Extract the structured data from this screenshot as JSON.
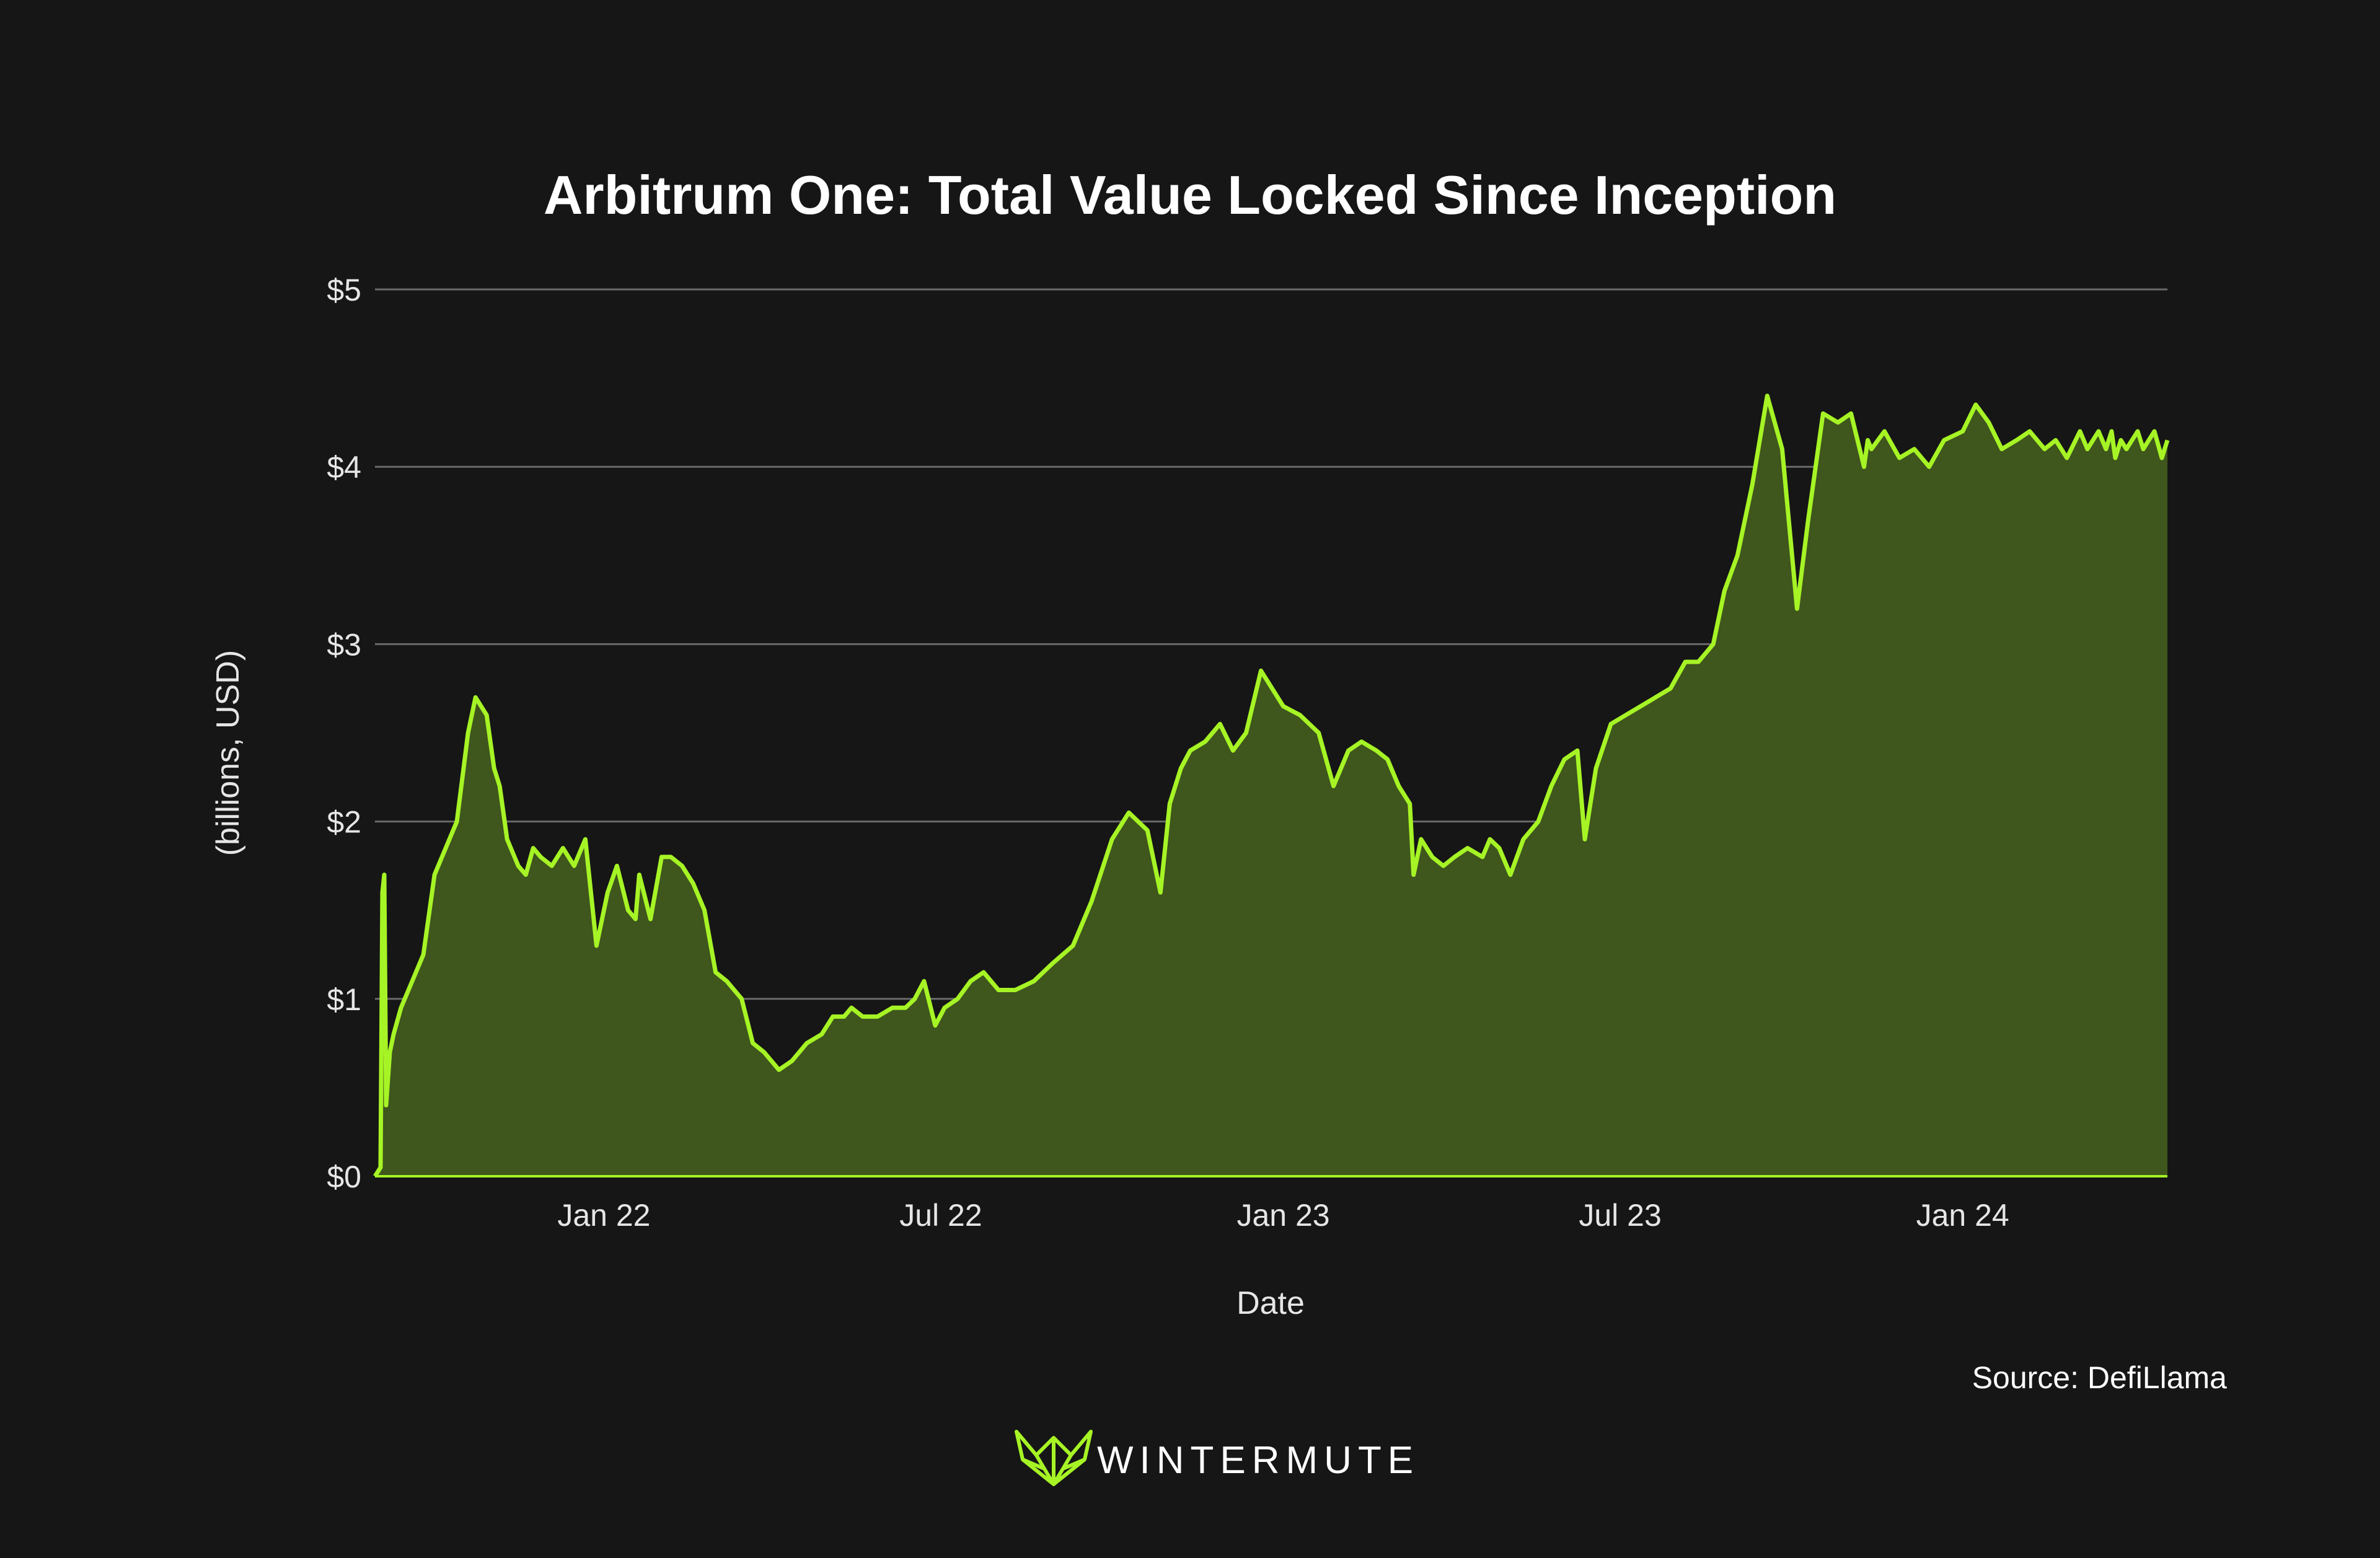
{
  "chart_data": {
    "type": "area",
    "title": "Arbitrum One: Total Value Locked Since Inception",
    "xlabel": "Date",
    "ylabel": "(billions, USD)",
    "ylim": [
      0,
      5
    ],
    "yticks": [
      0,
      1,
      2,
      3,
      4,
      5
    ],
    "ytick_labels": [
      "$0",
      "$1",
      "$2",
      "$3",
      "$4",
      "$5"
    ],
    "xlim": [
      "2021-08-31",
      "2024-04-20"
    ],
    "xticks": [
      "2022-01-01",
      "2022-07-01",
      "2023-01-01",
      "2023-07-01",
      "2024-01-01"
    ],
    "xtick_labels": [
      "Jan 22",
      "Jul 22",
      "Jan 23",
      "Jul 23",
      "Jan 24"
    ],
    "grid": true,
    "line_color": "#a6f425",
    "fill_color": "#3f561d",
    "series": [
      {
        "x": [
          "2021-08-31",
          "2021-09-03",
          "2021-09-04",
          "2021-09-05",
          "2021-09-06",
          "2021-09-08",
          "2021-09-10",
          "2021-09-14",
          "2021-09-20",
          "2021-09-26",
          "2021-10-02",
          "2021-10-10",
          "2021-10-14",
          "2021-10-20",
          "2021-10-24",
          "2021-10-30",
          "2021-11-03",
          "2021-11-06",
          "2021-11-10",
          "2021-11-16",
          "2021-11-20",
          "2021-11-24",
          "2021-11-28",
          "2021-12-04",
          "2021-12-10",
          "2021-12-16",
          "2021-12-22",
          "2021-12-28",
          "2022-01-03",
          "2022-01-08",
          "2022-01-14",
          "2022-01-18",
          "2022-01-20",
          "2022-01-26",
          "2022-02-01",
          "2022-02-06",
          "2022-02-12",
          "2022-02-18",
          "2022-02-24",
          "2022-03-02",
          "2022-03-08",
          "2022-03-12",
          "2022-03-16",
          "2022-03-22",
          "2022-03-28",
          "2022-04-05",
          "2022-04-12",
          "2022-04-20",
          "2022-04-28",
          "2022-05-04",
          "2022-05-10",
          "2022-05-14",
          "2022-05-20",
          "2022-05-28",
          "2022-06-05",
          "2022-06-12",
          "2022-06-17",
          "2022-06-22",
          "2022-06-28",
          "2022-07-03",
          "2022-07-10",
          "2022-07-17",
          "2022-07-24",
          "2022-08-01",
          "2022-08-10",
          "2022-08-20",
          "2022-08-30",
          "2022-09-10",
          "2022-09-20",
          "2022-10-01",
          "2022-10-10",
          "2022-10-20",
          "2022-10-27",
          "2022-11-01",
          "2022-11-07",
          "2022-11-12",
          "2022-11-20",
          "2022-11-28",
          "2022-12-05",
          "2022-12-12",
          "2022-12-20",
          "2023-01-01",
          "2023-01-10",
          "2023-01-20",
          "2023-01-28",
          "2023-02-05",
          "2023-02-12",
          "2023-02-20",
          "2023-02-26",
          "2023-03-04",
          "2023-03-10",
          "2023-03-12",
          "2023-03-16",
          "2023-03-22",
          "2023-03-28",
          "2023-04-03",
          "2023-04-10",
          "2023-04-18",
          "2023-04-22",
          "2023-04-27",
          "2023-05-03",
          "2023-05-10",
          "2023-05-18",
          "2023-05-25",
          "2023-06-01",
          "2023-06-08",
          "2023-06-12",
          "2023-06-18",
          "2023-06-26",
          "2023-07-04",
          "2023-07-12",
          "2023-07-20",
          "2023-07-28",
          "2023-08-05",
          "2023-08-12",
          "2023-08-16",
          "2023-08-20",
          "2023-08-26",
          "2023-09-02",
          "2023-09-10",
          "2023-09-18",
          "2023-09-26",
          "2023-10-04",
          "2023-10-10",
          "2023-10-18",
          "2023-10-26",
          "2023-11-02",
          "2023-11-09",
          "2023-11-11",
          "2023-11-13",
          "2023-11-20",
          "2023-11-28",
          "2023-12-06",
          "2023-12-14",
          "2023-12-22",
          "2024-01-01",
          "2024-01-08",
          "2024-01-15",
          "2024-01-22",
          "2024-01-30",
          "2024-02-06",
          "2024-02-14",
          "2024-02-20",
          "2024-02-26",
          "2024-03-04",
          "2024-03-08",
          "2024-03-11",
          "2024-03-14",
          "2024-03-18",
          "2024-03-21",
          "2024-03-23",
          "2024-03-26",
          "2024-03-29",
          "2024-04-01",
          "2024-04-04",
          "2024-04-07",
          "2024-04-10",
          "2024-04-13",
          "2024-04-17",
          "2024-04-20"
        ],
        "values": [
          0.0,
          0.05,
          1.6,
          1.7,
          0.4,
          0.7,
          0.8,
          0.95,
          1.1,
          1.25,
          1.7,
          1.9,
          2.0,
          2.5,
          2.7,
          2.6,
          2.3,
          2.2,
          1.9,
          1.75,
          1.7,
          1.85,
          1.8,
          1.75,
          1.85,
          1.75,
          1.9,
          1.3,
          1.6,
          1.75,
          1.5,
          1.45,
          1.7,
          1.45,
          1.8,
          1.8,
          1.75,
          1.65,
          1.5,
          1.15,
          1.1,
          1.05,
          1.0,
          0.75,
          0.7,
          0.6,
          0.65,
          0.75,
          0.8,
          0.9,
          0.9,
          0.95,
          0.9,
          0.9,
          0.95,
          0.95,
          1.0,
          1.1,
          0.85,
          0.95,
          1.0,
          1.1,
          1.15,
          1.05,
          1.05,
          1.1,
          1.2,
          1.3,
          1.55,
          1.9,
          2.05,
          1.95,
          1.6,
          2.1,
          2.3,
          2.4,
          2.45,
          2.55,
          2.4,
          2.5,
          2.85,
          2.65,
          2.6,
          2.5,
          2.2,
          2.4,
          2.45,
          2.4,
          2.35,
          2.2,
          2.1,
          1.7,
          1.9,
          1.8,
          1.75,
          1.8,
          1.85,
          1.8,
          1.9,
          1.85,
          1.7,
          1.9,
          2.0,
          2.2,
          2.35,
          2.4,
          1.9,
          2.3,
          2.55,
          2.6,
          2.65,
          2.7,
          2.75,
          2.9,
          2.9,
          2.95,
          3.0,
          3.3,
          3.5,
          3.9,
          4.4,
          4.1,
          3.2,
          3.7,
          4.3,
          4.25,
          4.3,
          4.0,
          4.15,
          4.1,
          4.2,
          4.05,
          4.1,
          4.0,
          4.15,
          4.2,
          4.35,
          4.25,
          4.1,
          4.15,
          4.2,
          4.1,
          4.15,
          4.05,
          4.2,
          4.1,
          4.15,
          4.2,
          4.1,
          4.2,
          4.05,
          4.15,
          4.1,
          4.15,
          4.2,
          4.1,
          4.15,
          4.2,
          4.05,
          4.15
        ]
      }
    ],
    "source": "Source: DefiLlama"
  },
  "branding": {
    "logo_icon": "wintermute-logo-icon",
    "name": "WINTERMUTE",
    "color": "#a6f425"
  }
}
